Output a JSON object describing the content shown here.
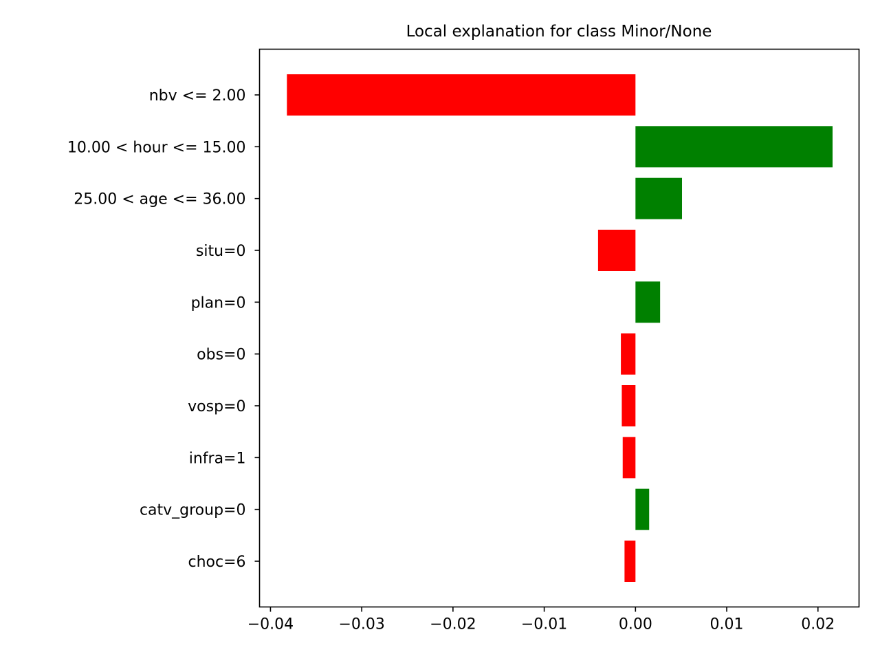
{
  "chart_data": {
    "type": "bar",
    "orientation": "horizontal",
    "title": "Local explanation for class Minor/None",
    "xlabel": "",
    "ylabel": "",
    "xlim": [
      -0.0412,
      0.0245
    ],
    "xticks": [
      -0.04,
      -0.03,
      -0.02,
      -0.01,
      0.0,
      0.01,
      0.02
    ],
    "xtick_labels": [
      "−0.04",
      "−0.03",
      "−0.02",
      "−0.01",
      "0.00",
      "0.01",
      "0.02"
    ],
    "categories": [
      "nbv <= 2.00",
      "10.00 < hour <= 15.00",
      "25.00 < age <= 36.00",
      "situ=0",
      "plan=0",
      "obs=0",
      "vosp=0",
      "infra=1",
      "catv_group=0",
      "choc=6"
    ],
    "values": [
      -0.0382,
      0.0216,
      0.0051,
      -0.0041,
      0.0027,
      -0.0016,
      -0.0015,
      -0.0014,
      0.0015,
      -0.0012
    ],
    "colors": {
      "positive": "#008000",
      "negative": "#ff0000"
    },
    "grid": false
  }
}
